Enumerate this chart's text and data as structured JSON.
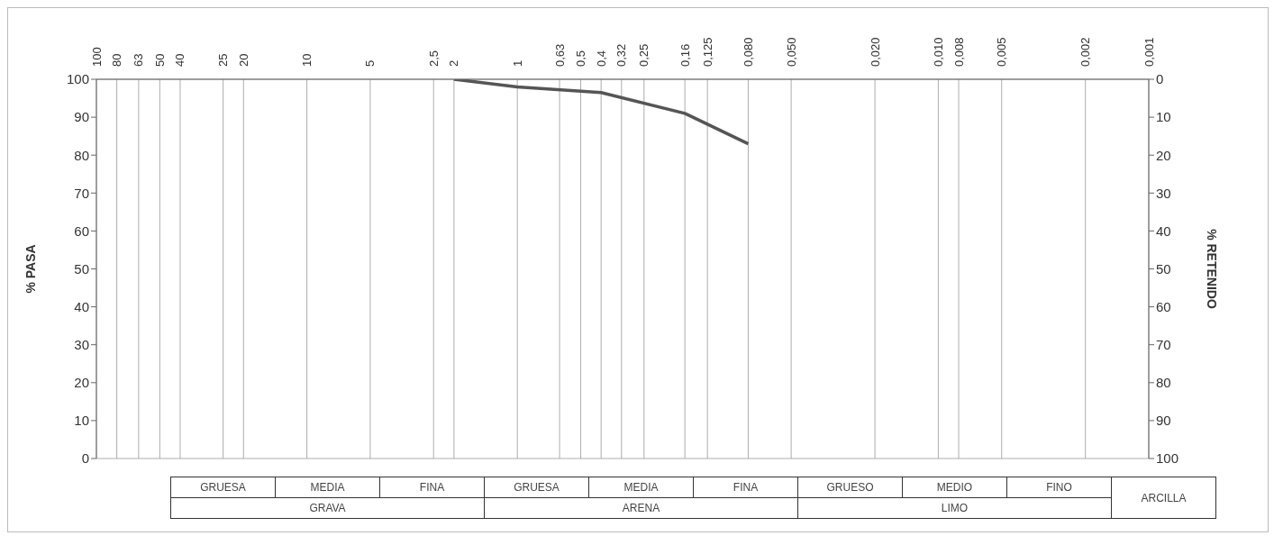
{
  "chart_data": {
    "type": "line",
    "ylabel": "% PASA",
    "y2label": "% RETENIDO",
    "x": [
      2,
      1,
      0.4,
      0.16,
      0.08
    ],
    "series": [
      {
        "color": "#555555",
        "values": [
          100,
          98,
          96.5,
          91,
          83
        ]
      }
    ],
    "xlim": [
      100,
      0.001
    ],
    "xticks": [
      100,
      80,
      63,
      50,
      40,
      25,
      20,
      10,
      5,
      {
        "value": 2.5,
        "label": "2,5"
      },
      2,
      1,
      {
        "value": 0.63,
        "label": "0,63"
      },
      {
        "value": 0.5,
        "label": "0,5"
      },
      {
        "value": 0.4,
        "label": "0,4"
      },
      {
        "value": 0.32,
        "label": "0,32"
      },
      {
        "value": 0.25,
        "label": "0,25"
      },
      {
        "value": 0.16,
        "label": "0,16"
      },
      {
        "value": 0.125,
        "label": "0,125"
      },
      {
        "value": 0.08,
        "label": "0,080"
      },
      {
        "value": 0.05,
        "label": "0,050"
      },
      {
        "value": 0.02,
        "label": "0,020"
      },
      {
        "value": 0.01,
        "label": "0,010"
      },
      {
        "value": 0.008,
        "label": "0,008"
      },
      {
        "value": 0.005,
        "label": "0,005"
      },
      {
        "value": 0.002,
        "label": "0,002"
      },
      {
        "value": 0.001,
        "label": "0,001"
      }
    ],
    "ylim": [
      0,
      100
    ],
    "yticks": [
      0,
      10,
      20,
      30,
      40,
      50,
      60,
      70,
      80,
      90,
      100
    ],
    "y2lim": [
      100,
      0
    ],
    "y2ticks": [
      0,
      10,
      20,
      30,
      40,
      50,
      60,
      70,
      80,
      90,
      100
    ],
    "log": "x",
    "grid": true,
    "marker": "none",
    "line_style": "solid",
    "annotations": [
      "GRUESA",
      "MEDIA",
      "FINA",
      "GRUESA",
      "MEDIA",
      "FINA",
      "GRUESO",
      "MEDIO",
      "FINO",
      "ARCILLA",
      "GRAVA",
      "ARENA",
      "LIMO"
    ]
  }
}
